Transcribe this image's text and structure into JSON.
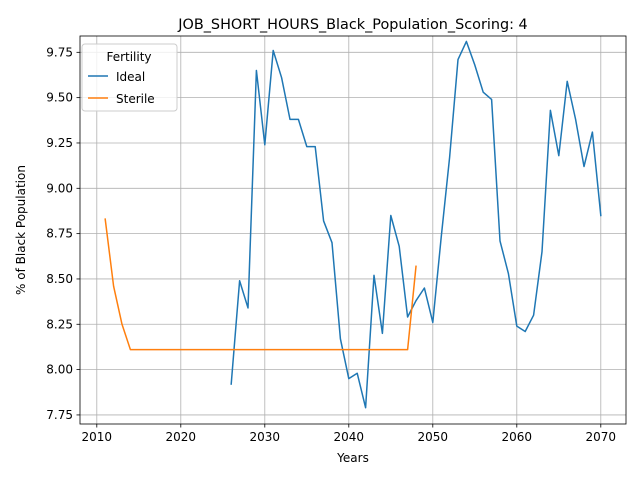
{
  "chart_data": {
    "type": "line",
    "title": "JOB_SHORT_HOURS_Black_Population_Scoring: 4",
    "xlabel": "Years",
    "ylabel": "% of Black Population",
    "xlim": [
      2008,
      2073
    ],
    "ylim": [
      7.7,
      9.84
    ],
    "x_ticks": [
      2010,
      2020,
      2030,
      2040,
      2050,
      2060,
      2070
    ],
    "y_ticks": [
      7.75,
      8.0,
      8.25,
      8.5,
      8.75,
      9.0,
      9.25,
      9.5,
      9.75
    ],
    "x_tick_labels": [
      "2010",
      "2020",
      "2030",
      "2040",
      "2050",
      "2060",
      "2070"
    ],
    "y_tick_labels": [
      "7.75",
      "8.00",
      "8.25",
      "8.50",
      "8.75",
      "9.00",
      "9.25",
      "9.50",
      "9.75"
    ],
    "grid": true,
    "legend": {
      "title": "Fertility",
      "placement": "top-left"
    },
    "series": [
      {
        "name": "Ideal",
        "color": "#1f77b4",
        "x": [
          2026,
          2027,
          2028,
          2029,
          2030,
          2031,
          2032,
          2033,
          2034,
          2035,
          2036,
          2037,
          2038,
          2039,
          2040,
          2041,
          2042,
          2043,
          2044,
          2045,
          2046,
          2047,
          2048,
          2049,
          2050,
          2051,
          2052,
          2053,
          2054,
          2055,
          2056,
          2057,
          2058,
          2059,
          2060,
          2061,
          2062,
          2063,
          2064,
          2065,
          2066,
          2067,
          2068,
          2069,
          2070
        ],
        "y": [
          7.92,
          8.49,
          8.34,
          9.65,
          9.24,
          9.76,
          9.61,
          9.38,
          9.38,
          9.23,
          9.23,
          8.82,
          8.7,
          8.17,
          7.95,
          7.98,
          7.79,
          8.52,
          8.2,
          8.85,
          8.68,
          8.29,
          8.38,
          8.45,
          8.26,
          8.73,
          9.17,
          9.71,
          9.81,
          9.68,
          9.53,
          9.49,
          8.71,
          8.53,
          8.24,
          8.21,
          8.3,
          8.65,
          9.43,
          9.18,
          9.59,
          9.38,
          9.12,
          9.31,
          8.85
        ]
      },
      {
        "name": "Sterile",
        "color": "#ff7f0e",
        "x": [
          2011,
          2012,
          2013,
          2014,
          2015,
          2016,
          2017,
          2018,
          2019,
          2020,
          2021,
          2022,
          2023,
          2024,
          2025,
          2026,
          2027,
          2028,
          2029,
          2030,
          2031,
          2032,
          2033,
          2034,
          2035,
          2036,
          2037,
          2038,
          2039,
          2040,
          2041,
          2042,
          2043,
          2044,
          2045,
          2046,
          2047,
          2048
        ],
        "y": [
          8.83,
          8.46,
          8.25,
          8.11,
          8.11,
          8.11,
          8.11,
          8.11,
          8.11,
          8.11,
          8.11,
          8.11,
          8.11,
          8.11,
          8.11,
          8.11,
          8.11,
          8.11,
          8.11,
          8.11,
          8.11,
          8.11,
          8.11,
          8.11,
          8.11,
          8.11,
          8.11,
          8.11,
          8.11,
          8.11,
          8.11,
          8.11,
          8.11,
          8.11,
          8.11,
          8.11,
          8.11,
          8.57
        ]
      }
    ]
  }
}
